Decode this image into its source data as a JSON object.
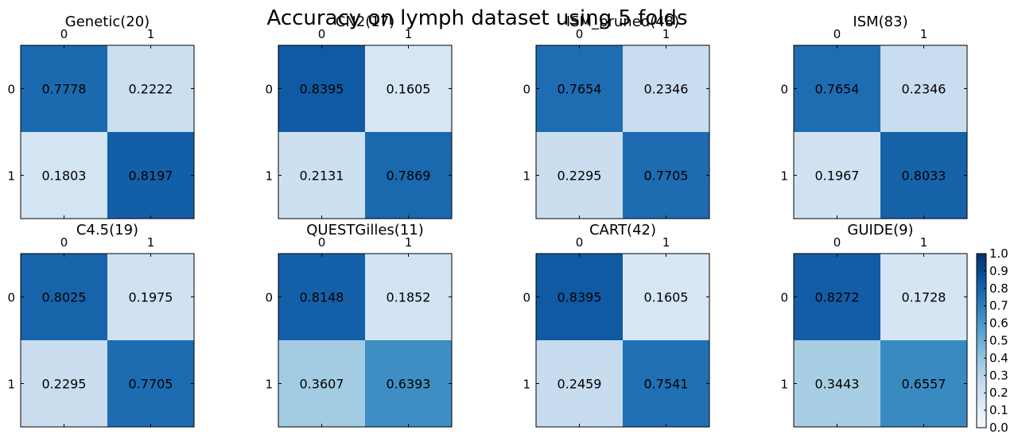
{
  "figure": {
    "suptitle": "Accuracy on lymph dataset using 5 folds"
  },
  "chart_data": [
    {
      "type": "heatmap",
      "title": "Genetic(20)",
      "x_ticks": [
        "0",
        "1"
      ],
      "y_ticks": [
        "0",
        "1"
      ],
      "values": [
        [
          0.7778,
          0.2222
        ],
        [
          0.1803,
          0.8197
        ]
      ]
    },
    {
      "type": "heatmap",
      "title": "CN2(17)",
      "x_ticks": [
        "0",
        "1"
      ],
      "y_ticks": [
        "0",
        "1"
      ],
      "values": [
        [
          0.8395,
          0.1605
        ],
        [
          0.2131,
          0.7869
        ]
      ]
    },
    {
      "type": "heatmap",
      "title": "ISM_pruned(48)",
      "x_ticks": [
        "0",
        "1"
      ],
      "y_ticks": [
        "0",
        "1"
      ],
      "values": [
        [
          0.7654,
          0.2346
        ],
        [
          0.2295,
          0.7705
        ]
      ]
    },
    {
      "type": "heatmap",
      "title": "ISM(83)",
      "x_ticks": [
        "0",
        "1"
      ],
      "y_ticks": [
        "0",
        "1"
      ],
      "values": [
        [
          0.7654,
          0.2346
        ],
        [
          0.1967,
          0.8033
        ]
      ]
    },
    {
      "type": "heatmap",
      "title": "C4.5(19)",
      "x_ticks": [
        "0",
        "1"
      ],
      "y_ticks": [
        "0",
        "1"
      ],
      "values": [
        [
          0.8025,
          0.1975
        ],
        [
          0.2295,
          0.7705
        ]
      ]
    },
    {
      "type": "heatmap",
      "title": "QUESTGilles(11)",
      "x_ticks": [
        "0",
        "1"
      ],
      "y_ticks": [
        "0",
        "1"
      ],
      "values": [
        [
          0.8148,
          0.1852
        ],
        [
          0.3607,
          0.6393
        ]
      ]
    },
    {
      "type": "heatmap",
      "title": "CART(42)",
      "x_ticks": [
        "0",
        "1"
      ],
      "y_ticks": [
        "0",
        "1"
      ],
      "values": [
        [
          0.8395,
          0.1605
        ],
        [
          0.2459,
          0.7541
        ]
      ]
    },
    {
      "type": "heatmap",
      "title": "GUIDE(9)",
      "x_ticks": [
        "0",
        "1"
      ],
      "y_ticks": [
        "0",
        "1"
      ],
      "values": [
        [
          0.8272,
          0.1728
        ],
        [
          0.3443,
          0.6557
        ]
      ]
    }
  ],
  "colorbar": {
    "range": [
      0.0,
      1.0
    ],
    "tick_labels": [
      "0.0",
      "0.1",
      "0.2",
      "0.3",
      "0.4",
      "0.5",
      "0.6",
      "0.7",
      "0.8",
      "0.9",
      "1.0"
    ],
    "colormap": [
      "#f7fbff",
      "#deebf7",
      "#c6dbef",
      "#9ecae1",
      "#6baed6",
      "#4292c6",
      "#2171b5",
      "#08519c",
      "#08306b"
    ]
  }
}
